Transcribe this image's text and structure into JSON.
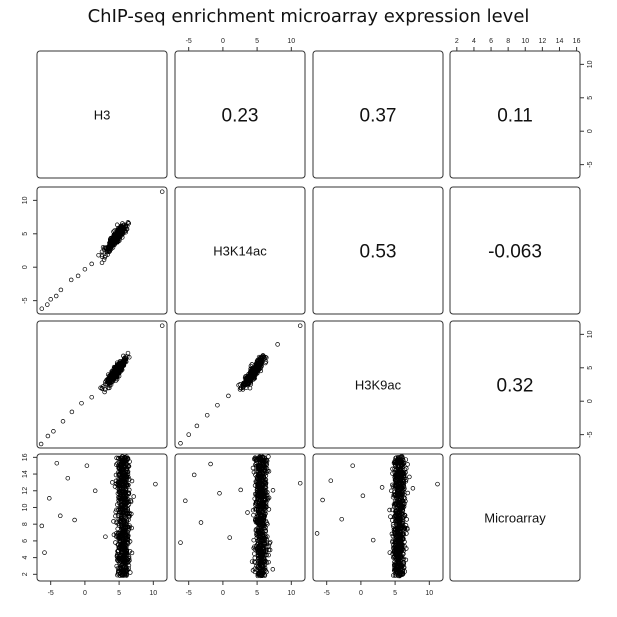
{
  "title": "ChIP-seq enrichment microarray expression level",
  "chart_data": {
    "type": "scatter",
    "variables": [
      "H3",
      "H3K14ac",
      "H3K9ac",
      "Microarray"
    ],
    "correlations": [
      {
        "row": "H3",
        "col": "H3K14ac",
        "label": "0.23"
      },
      {
        "row": "H3",
        "col": "H3K9ac",
        "label": "0.37"
      },
      {
        "row": "H3",
        "col": "Microarray",
        "label": "0.11"
      },
      {
        "row": "H3K14ac",
        "col": "H3K9ac",
        "label": "0.53"
      },
      {
        "row": "H3K14ac",
        "col": "Microarray",
        "label": "-0.063"
      },
      {
        "row": "H3K9ac",
        "col": "Microarray",
        "label": "0.32"
      }
    ],
    "ranges": {
      "H3": [
        -7,
        12
      ],
      "H3K14ac": [
        -7,
        12
      ],
      "H3K9ac": [
        -7,
        12
      ],
      "Microarray": [
        1.2,
        16.4
      ]
    },
    "ticks": {
      "H3": [
        "-5",
        "0",
        "5",
        "10"
      ],
      "H3K14ac": [
        "-5",
        "0",
        "5",
        "10"
      ],
      "H3K9ac": [
        "-5",
        "0",
        "5",
        "10"
      ],
      "Microarray": [
        "2",
        "4",
        "6",
        "8",
        "10",
        "12",
        "14",
        "16"
      ]
    },
    "tick_values": {
      "H3": [
        -5,
        0,
        5,
        10
      ],
      "H3K14ac": [
        -5,
        0,
        5,
        10
      ],
      "H3K9ac": [
        -5,
        0,
        5,
        10
      ],
      "Microarray": [
        2,
        4,
        6,
        8,
        10,
        12,
        14,
        16
      ]
    },
    "sample_points": {
      "H3_vs_H3K14ac": [
        [
          -6.3,
          -6.2
        ],
        [
          -5.5,
          -5.6
        ],
        [
          -5,
          -4.8
        ],
        [
          -4.2,
          -4.3
        ],
        [
          -3.5,
          -3.4
        ],
        [
          -2,
          -1.9
        ],
        [
          -1,
          -1.3
        ],
        [
          0,
          -0.3
        ],
        [
          1,
          0.5
        ],
        [
          2,
          1.8
        ],
        [
          3,
          2.9
        ],
        [
          4,
          3.6
        ],
        [
          5,
          4.8
        ],
        [
          5.5,
          5.6
        ],
        [
          6,
          6.2
        ],
        [
          11.3,
          11.3
        ]
      ],
      "H3_vs_H3K9ac": [
        [
          -6.4,
          -6.4
        ],
        [
          -5.4,
          -5.2
        ],
        [
          -4.6,
          -4.5
        ],
        [
          -3.2,
          -3
        ],
        [
          -1.9,
          -1.6
        ],
        [
          -0.5,
          -0.3
        ],
        [
          1,
          0.6
        ],
        [
          2.3,
          2
        ],
        [
          3.5,
          3.4
        ],
        [
          4.6,
          4.6
        ],
        [
          5.6,
          5.8
        ],
        [
          6.3,
          7.2
        ],
        [
          11.3,
          11.3
        ]
      ],
      "H3K14ac_vs_H3K9ac": [
        [
          -6.2,
          -6.3
        ],
        [
          -5,
          -5
        ],
        [
          -3.8,
          -3.7
        ],
        [
          -2.3,
          -2.1
        ],
        [
          -0.8,
          -0.6
        ],
        [
          0.8,
          0.8
        ],
        [
          2.3,
          2.4
        ],
        [
          3.6,
          3.7
        ],
        [
          5,
          5.2
        ],
        [
          6,
          6.6
        ],
        [
          8,
          8.5
        ],
        [
          11.3,
          11.3
        ]
      ],
      "H3_vs_Microarray": [
        [
          -6.3,
          7.8
        ],
        [
          -5.9,
          4.6
        ],
        [
          -5.2,
          11.1
        ],
        [
          -4.1,
          15.3
        ],
        [
          -3.6,
          9
        ],
        [
          -2.5,
          13.5
        ],
        [
          -1.5,
          8.5
        ],
        [
          0.3,
          15
        ],
        [
          1.5,
          12
        ],
        [
          3,
          6.5
        ],
        [
          4,
          13
        ],
        [
          5.3,
          9.5
        ],
        [
          5.7,
          3
        ],
        [
          6.3,
          14
        ],
        [
          10.3,
          12.8
        ]
      ],
      "H3K14ac_vs_Microarray": [
        [
          -6.2,
          5.8
        ],
        [
          -5.5,
          10.8
        ],
        [
          -4.2,
          13.9
        ],
        [
          -3.2,
          8.2
        ],
        [
          -1.8,
          15.2
        ],
        [
          -0.5,
          11.7
        ],
        [
          1,
          6.4
        ],
        [
          2.6,
          12.1
        ],
        [
          3.6,
          9.4
        ],
        [
          4.6,
          3.5
        ],
        [
          5.8,
          14.8
        ],
        [
          6.5,
          8
        ],
        [
          7.3,
          2.6
        ],
        [
          11.3,
          12.9
        ]
      ],
      "H3K9ac_vs_Microarray": [
        [
          -6.4,
          6.9
        ],
        [
          -5.6,
          10.9
        ],
        [
          -4.4,
          13.2
        ],
        [
          -2.8,
          8.6
        ],
        [
          -1.2,
          15
        ],
        [
          0.3,
          11.4
        ],
        [
          1.8,
          6.1
        ],
        [
          3.1,
          12.4
        ],
        [
          4.2,
          9.7
        ],
        [
          5,
          3.1
        ],
        [
          6,
          15
        ],
        [
          6.8,
          7.4
        ],
        [
          7.6,
          12.3
        ],
        [
          11.2,
          12.8
        ]
      ]
    }
  }
}
